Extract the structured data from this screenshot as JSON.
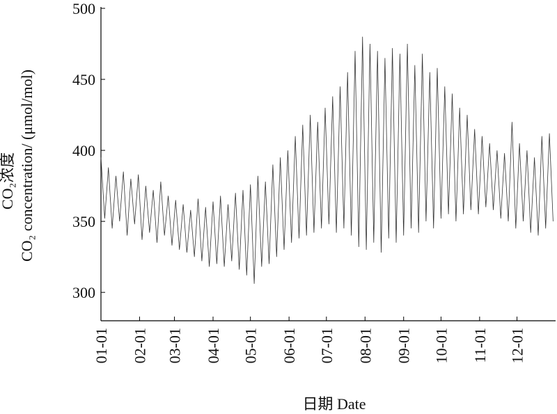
{
  "chart_data": {
    "type": "line",
    "ylabel": [
      "CO₂浓度",
      "CO₂ concentration/ (μmol/mol)"
    ],
    "xlabel": "日期 Date",
    "x": [
      0,
      3,
      6,
      9,
      12,
      15,
      18,
      21,
      24,
      27,
      30,
      33,
      36,
      39,
      42,
      45,
      48,
      51,
      54,
      57,
      60,
      63,
      66,
      69,
      72,
      75,
      78,
      81,
      84,
      87,
      90,
      93,
      96,
      99,
      102,
      105,
      108,
      111,
      114,
      117,
      120,
      123,
      126,
      129,
      132,
      135,
      138,
      141,
      144,
      147,
      150,
      153,
      156,
      159,
      162,
      165,
      168,
      171,
      174,
      177,
      180,
      183,
      186,
      189,
      192,
      195,
      198,
      201,
      204,
      207,
      210,
      213,
      216,
      219,
      222,
      225,
      228,
      231,
      234,
      237,
      240,
      243,
      246,
      249,
      252,
      255,
      258,
      261,
      264,
      267,
      270,
      273,
      276,
      279,
      282,
      285,
      288,
      291,
      294,
      297,
      300,
      303,
      306,
      309,
      312,
      315,
      318,
      321,
      324,
      327,
      330,
      333,
      336,
      339,
      342,
      345,
      348,
      351,
      354,
      357,
      360,
      363
    ],
    "values": [
      395,
      352,
      388,
      345,
      382,
      350,
      385,
      340,
      380,
      348,
      383,
      337,
      375,
      342,
      372,
      335,
      378,
      340,
      368,
      333,
      365,
      330,
      362,
      328,
      358,
      325,
      366,
      322,
      360,
      318,
      364,
      320,
      368,
      318,
      362,
      322,
      370,
      316,
      372,
      312,
      376,
      306,
      382,
      318,
      378,
      320,
      390,
      325,
      395,
      330,
      400,
      335,
      410,
      338,
      418,
      340,
      425,
      342,
      420,
      345,
      430,
      348,
      438,
      342,
      445,
      345,
      455,
      340,
      470,
      332,
      480,
      330,
      475,
      335,
      470,
      328,
      465,
      338,
      472,
      335,
      468,
      340,
      475,
      345,
      460,
      342,
      468,
      350,
      455,
      345,
      458,
      352,
      445,
      355,
      440,
      350,
      430,
      355,
      425,
      358,
      415,
      355,
      410,
      360,
      405,
      358,
      400,
      352,
      398,
      350,
      420,
      345,
      405,
      350,
      400,
      342,
      395,
      340,
      410,
      345,
      412,
      350
    ],
    "color": "#333333",
    "xlim": [
      0,
      365
    ],
    "xticks": [
      {
        "value": 0,
        "label": "01-01"
      },
      {
        "value": 31,
        "label": "02-01"
      },
      {
        "value": 59,
        "label": "03-01"
      },
      {
        "value": 90,
        "label": "04-01"
      },
      {
        "value": 120,
        "label": "05-01"
      },
      {
        "value": 151,
        "label": "06-01"
      },
      {
        "value": 181,
        "label": "07-01"
      },
      {
        "value": 212,
        "label": "08-01"
      },
      {
        "value": 243,
        "label": "09-01"
      },
      {
        "value": 273,
        "label": "10-01"
      },
      {
        "value": 304,
        "label": "11-01"
      },
      {
        "value": 334,
        "label": "12-01"
      }
    ],
    "ylim": [
      280,
      500
    ],
    "yticks": [
      300,
      350,
      400,
      450,
      500
    ]
  }
}
